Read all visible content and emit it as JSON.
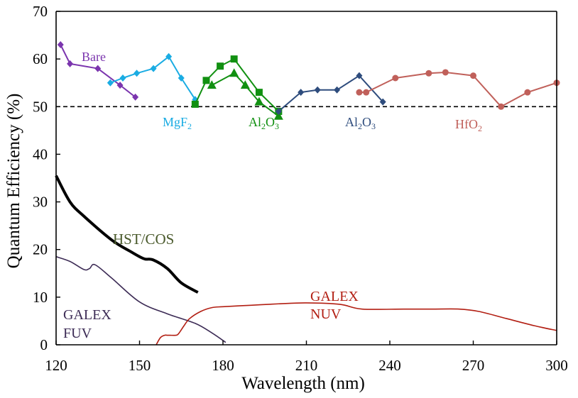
{
  "chart_data": {
    "type": "line",
    "title": "",
    "xlabel": "Wavelength (nm)",
    "ylabel": "Quantum Efficiency (%)",
    "xlim": [
      120,
      300
    ],
    "ylim": [
      0,
      70
    ],
    "xticks": [
      120,
      150,
      180,
      210,
      240,
      270,
      300
    ],
    "yticks": [
      0,
      10,
      20,
      30,
      40,
      50,
      60,
      70
    ],
    "reference_line": {
      "y": 50,
      "style": "dashed",
      "color": "#000000"
    },
    "series": [
      {
        "name": "Bare",
        "label": "Bare",
        "color": "#7B35AE",
        "marker": "diamond",
        "x": [
          121.6,
          125,
          135,
          143,
          148.5
        ],
        "y": [
          63,
          59,
          58,
          54.5,
          52
        ]
      },
      {
        "name": "MgF2",
        "label": "MgF",
        "sub": "2",
        "color": "#1AACE3",
        "marker": "diamond",
        "x": [
          139.5,
          144,
          149,
          155,
          160.5,
          165,
          170
        ],
        "y": [
          55,
          56,
          57,
          58,
          60.5,
          56,
          51.5
        ]
      },
      {
        "name": "Al2O3 (square)",
        "color": "#119011",
        "marker": "square",
        "x": [
          170,
          174,
          179,
          184,
          193,
          200
        ],
        "y": [
          50.5,
          55.5,
          58.5,
          60,
          53,
          49
        ]
      },
      {
        "name": "Al2O3 (triangle)",
        "color": "#119011",
        "marker": "triangle",
        "x": [
          176,
          184,
          188,
          193,
          200
        ],
        "y": [
          54.5,
          57,
          54.5,
          51,
          48
        ]
      },
      {
        "name": "Al2O3 (blue)",
        "color": "#2E4C7D",
        "marker": "diamond",
        "x": [
          200,
          208,
          214,
          221,
          229,
          237.5
        ],
        "y": [
          49,
          53,
          53.5,
          53.5,
          56.5,
          51
        ]
      },
      {
        "name": "HfO2",
        "label": "HfO",
        "sub": "2",
        "color": "#C0605A",
        "marker": "circle",
        "x": [
          229,
          231.5,
          242,
          254,
          260,
          270,
          280,
          289.5,
          300
        ],
        "y": [
          53,
          53,
          56,
          57,
          57.2,
          56.5,
          50,
          53,
          55
        ]
      },
      {
        "name": "HST/COS",
        "label": "HST/COS",
        "color": "#000000",
        "marker": "none",
        "x": [
          120,
          125,
          130,
          140,
          147,
          150,
          152,
          155,
          160,
          165,
          171
        ],
        "y": [
          35.5,
          30,
          27,
          22,
          19.5,
          18.5,
          18,
          17.8,
          16,
          13,
          11
        ]
      },
      {
        "name": "GALEX FUV",
        "label_lines": [
          "GALEX",
          "FUV"
        ],
        "color": "#3C2B55",
        "marker": "none",
        "x": [
          120,
          125,
          130,
          132,
          134,
          140,
          150,
          160,
          170,
          176,
          181
        ],
        "y": [
          18.5,
          17.5,
          15.8,
          16,
          16.8,
          14,
          9,
          6.5,
          4.5,
          2.5,
          0.5
        ]
      },
      {
        "name": "GALEX NUV",
        "label_lines": [
          "GALEX",
          "NUV"
        ],
        "color": "#B21E12",
        "marker": "none",
        "x": [
          156,
          157.5,
          159,
          160,
          161,
          163,
          164,
          166,
          168,
          172,
          176,
          180,
          190,
          200,
          210,
          222,
          230,
          245,
          255,
          265,
          272,
          282,
          292,
          300
        ],
        "y": [
          0,
          1.5,
          2,
          2,
          2,
          2,
          2.3,
          4,
          5.5,
          7,
          7.8,
          8,
          8.3,
          8.6,
          8.8,
          8.5,
          7.5,
          7.5,
          7.5,
          7.5,
          7,
          5.5,
          4,
          3
        ]
      }
    ],
    "labels": {
      "bare": "Bare",
      "mgf2_main": "MgF",
      "mgf2_sub": "2",
      "al2o3_green_1": "Al",
      "al2o3_green_2": "2",
      "al2o3_green_3": "O",
      "al2o3_green_4": "3",
      "al2o3_blue_1": "Al",
      "al2o3_blue_2": "2",
      "al2o3_blue_3": "O",
      "al2o3_blue_4": "3",
      "hfo2_main": "HfO",
      "hfo2_sub": "2",
      "hst_cos": "HST/COS",
      "galex_fuv_1": "GALEX",
      "galex_fuv_2": "FUV",
      "galex_nuv_1": "GALEX",
      "galex_nuv_2": "NUV"
    }
  }
}
